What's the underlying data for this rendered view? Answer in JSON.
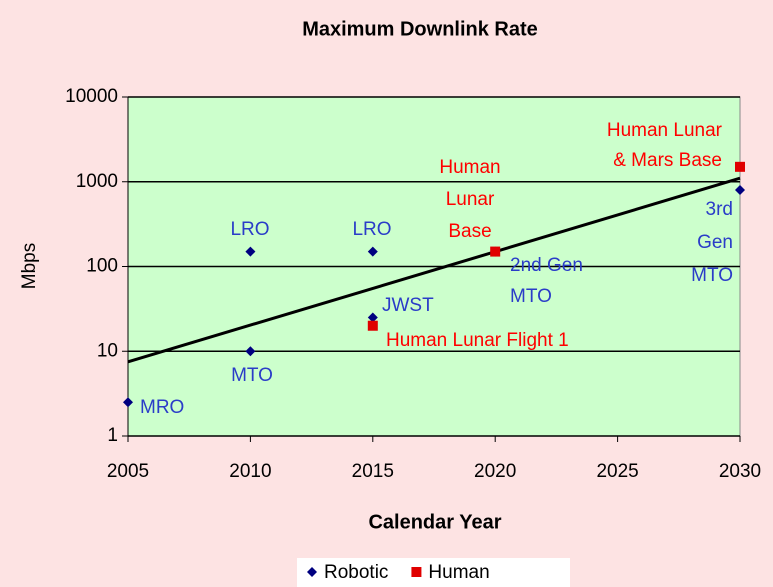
{
  "chart_data": {
    "type": "scatter",
    "title": "Maximum Downlink Rate",
    "x_label": "Calendar Year",
    "y_label": "Mbps",
    "log_y": true,
    "grid": true,
    "legend": "bottom",
    "xlim": [
      2005,
      2030
    ],
    "xticks": [
      2005,
      2010,
      2015,
      2020,
      2025,
      2030
    ],
    "ylim": [
      1,
      10000
    ],
    "yticks": [
      1,
      10,
      100,
      1000,
      10000
    ],
    "series": [
      {
        "name": "Robotic",
        "color": "#000080",
        "label_color": "#2a3cc8",
        "marker": "diamond",
        "x": [
          2005,
          2010,
          2010,
          2015,
          2015,
          2020,
          2030
        ],
        "values": [
          2.5,
          150,
          10,
          150,
          25,
          150,
          800
        ],
        "labels": [
          [
            "MRO"
          ],
          [
            "LRO"
          ],
          [
            "MTO"
          ],
          [
            "LRO"
          ],
          [
            "JWST"
          ],
          [
            "2nd Gen",
            "MTO"
          ],
          [
            "3rd",
            "Gen",
            "MTO"
          ]
        ]
      },
      {
        "name": "Human",
        "color": "#e00000",
        "label_color": "#ff0000",
        "marker": "square",
        "x": [
          2015,
          2020,
          2030
        ],
        "values": [
          20,
          150,
          1500
        ],
        "labels": [
          [
            "Human Lunar Flight 1"
          ],
          [
            "Human",
            "Lunar",
            "Base"
          ],
          [
            "Human Lunar",
            "& Mars Base"
          ]
        ]
      }
    ],
    "trendline": {
      "color": "#000000",
      "x": [
        2005,
        2030
      ],
      "values": [
        7.5,
        1100
      ]
    }
  }
}
